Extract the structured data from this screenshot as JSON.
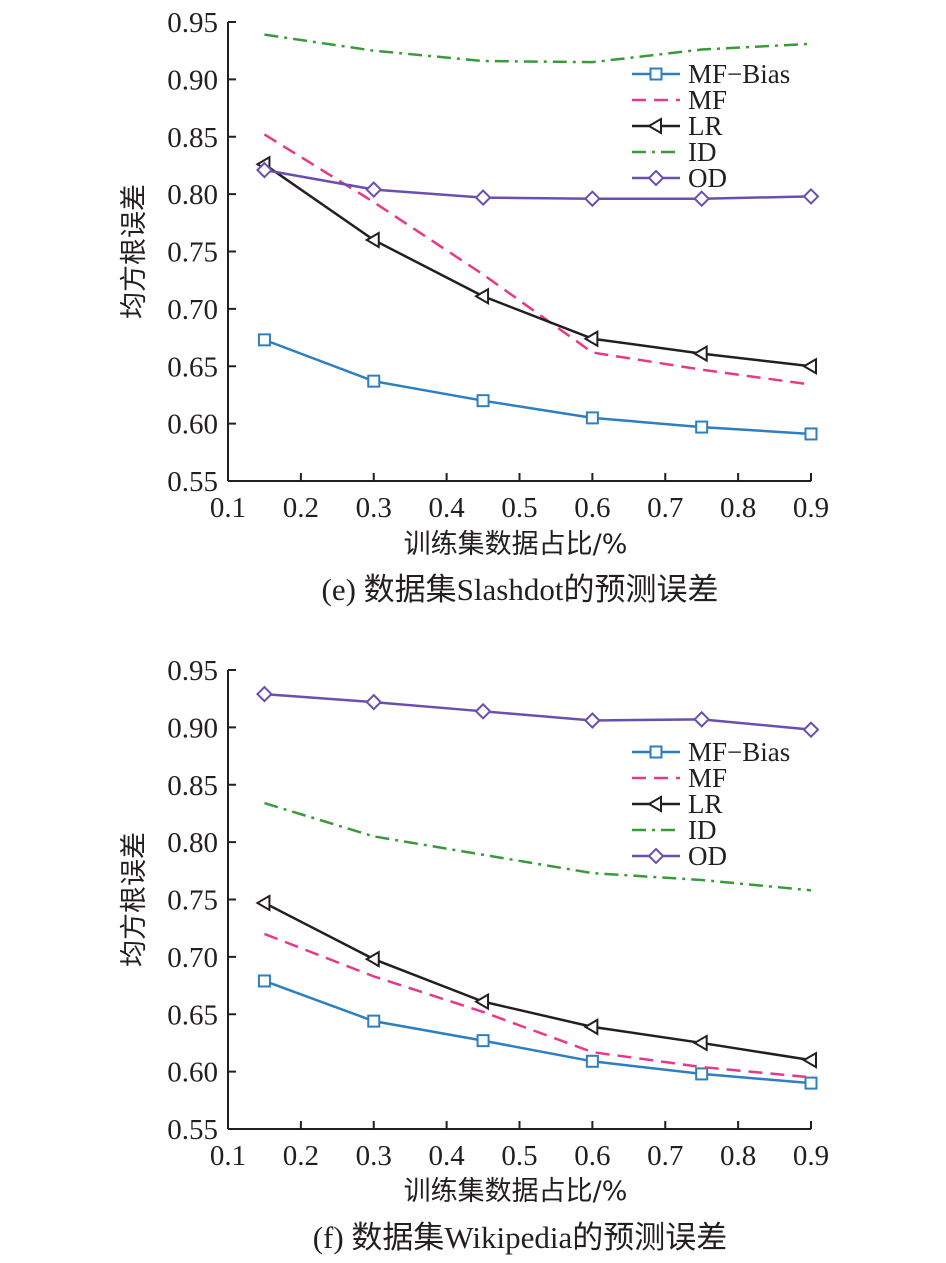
{
  "chart_data": [
    {
      "type": "line",
      "caption": "(e) 数据集Slashdot的预测误差",
      "xlabel": "训练集数据占比/%",
      "ylabel": "均方根误差",
      "xlim": [
        0.1,
        0.9
      ],
      "ylim": [
        0.55,
        0.95
      ],
      "xticks": [
        "0.1",
        "0.2",
        "0.3",
        "0.4",
        "0.5",
        "0.6",
        "0.7",
        "0.8",
        "0.9"
      ],
      "yticks": [
        "0.55",
        "0.60",
        "0.65",
        "0.70",
        "0.75",
        "0.80",
        "0.85",
        "0.90",
        "0.95"
      ],
      "legend_position": "top-right",
      "x": [
        0.15,
        0.3,
        0.45,
        0.6,
        0.75,
        0.9
      ],
      "series": [
        {
          "name": "MF−Bias",
          "color": "#2e7fbf",
          "style": "solid",
          "marker": "square",
          "values": [
            0.673,
            0.637,
            0.62,
            0.605,
            0.597,
            0.591
          ]
        },
        {
          "name": "MF",
          "color": "#e8388a",
          "style": "dashed",
          "marker": "none",
          "values": [
            0.852,
            0.793,
            0.73,
            0.662,
            0.647,
            0.634
          ]
        },
        {
          "name": "LR",
          "color": "#231f20",
          "style": "solid",
          "marker": "triangle-left",
          "values": [
            0.826,
            0.76,
            0.711,
            0.674,
            0.661,
            0.65
          ]
        },
        {
          "name": "ID",
          "color": "#3a9a3a",
          "style": "dashdot",
          "marker": "none",
          "values": [
            0.939,
            0.925,
            0.916,
            0.915,
            0.926,
            0.931
          ]
        },
        {
          "name": "OD",
          "color": "#6a4fb0",
          "style": "solid",
          "marker": "diamond",
          "values": [
            0.821,
            0.804,
            0.797,
            0.796,
            0.796,
            0.798
          ]
        }
      ]
    },
    {
      "type": "line",
      "caption": "(f) 数据集Wikipedia的预测误差",
      "xlabel": "训练集数据占比/%",
      "ylabel": "均方根误差",
      "xlim": [
        0.1,
        0.9
      ],
      "ylim": [
        0.55,
        0.95
      ],
      "xticks": [
        "0.1",
        "0.2",
        "0.3",
        "0.4",
        "0.5",
        "0.6",
        "0.7",
        "0.8",
        "0.9"
      ],
      "yticks": [
        "0.55",
        "0.60",
        "0.65",
        "0.70",
        "0.75",
        "0.80",
        "0.85",
        "0.90",
        "0.95"
      ],
      "legend_position": "top-right",
      "x": [
        0.15,
        0.3,
        0.45,
        0.6,
        0.75,
        0.9
      ],
      "series": [
        {
          "name": "MF−Bias",
          "color": "#2e7fbf",
          "style": "solid",
          "marker": "square",
          "values": [
            0.679,
            0.644,
            0.627,
            0.609,
            0.598,
            0.59
          ]
        },
        {
          "name": "MF",
          "color": "#e8388a",
          "style": "dashed",
          "marker": "none",
          "values": [
            0.72,
            0.683,
            0.652,
            0.617,
            0.604,
            0.595
          ]
        },
        {
          "name": "LR",
          "color": "#231f20",
          "style": "solid",
          "marker": "triangle-left",
          "values": [
            0.747,
            0.698,
            0.661,
            0.639,
            0.625,
            0.61
          ]
        },
        {
          "name": "ID",
          "color": "#3a9a3a",
          "style": "dashdot",
          "marker": "none",
          "values": [
            0.834,
            0.805,
            0.789,
            0.773,
            0.767,
            0.758
          ]
        },
        {
          "name": "OD",
          "color": "#6a4fb0",
          "style": "solid",
          "marker": "diamond",
          "values": [
            0.929,
            0.922,
            0.914,
            0.906,
            0.907,
            0.898
          ]
        }
      ]
    }
  ]
}
